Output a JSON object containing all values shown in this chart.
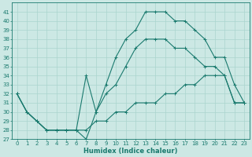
{
  "xlabel": "Humidex (Indice chaleur)",
  "bg_color": "#cce8e4",
  "line_color": "#1a7a6e",
  "grid_color": "#aad4ce",
  "xlim": [
    -0.5,
    23.5
  ],
  "ylim": [
    27,
    42
  ],
  "yticks": [
    27,
    28,
    29,
    30,
    31,
    32,
    33,
    34,
    35,
    36,
    37,
    38,
    39,
    40,
    41
  ],
  "xticks": [
    0,
    1,
    2,
    3,
    4,
    5,
    6,
    7,
    8,
    9,
    10,
    11,
    12,
    13,
    14,
    15,
    16,
    17,
    18,
    19,
    20,
    21,
    22,
    23
  ],
  "line1_x": [
    0,
    1,
    2,
    3,
    4,
    5,
    6,
    7,
    8,
    9,
    10,
    11,
    12,
    13,
    14,
    15,
    16,
    17,
    18,
    19,
    20,
    21,
    22,
    23
  ],
  "line1_y": [
    32,
    30,
    29,
    28,
    28,
    28,
    28,
    27,
    30,
    33,
    36,
    38,
    39,
    41,
    41,
    41,
    40,
    40,
    39,
    38,
    36,
    36,
    33,
    31
  ],
  "line2_x": [
    0,
    1,
    2,
    3,
    4,
    5,
    6,
    7,
    8,
    9,
    10,
    11,
    12,
    13,
    14,
    15,
    16,
    17,
    18,
    19,
    20,
    21,
    22,
    23
  ],
  "line2_y": [
    32,
    30,
    29,
    28,
    28,
    28,
    28,
    34,
    30,
    32,
    33,
    35,
    37,
    38,
    38,
    38,
    37,
    37,
    36,
    35,
    35,
    34,
    31,
    31
  ],
  "line3_x": [
    0,
    1,
    2,
    3,
    4,
    5,
    6,
    7,
    8,
    9,
    10,
    11,
    12,
    13,
    14,
    15,
    16,
    17,
    18,
    19,
    20,
    21,
    22,
    23
  ],
  "line3_y": [
    32,
    30,
    29,
    28,
    28,
    28,
    28,
    28,
    29,
    29,
    30,
    30,
    31,
    31,
    31,
    32,
    32,
    33,
    33,
    34,
    34,
    34,
    31,
    31
  ]
}
